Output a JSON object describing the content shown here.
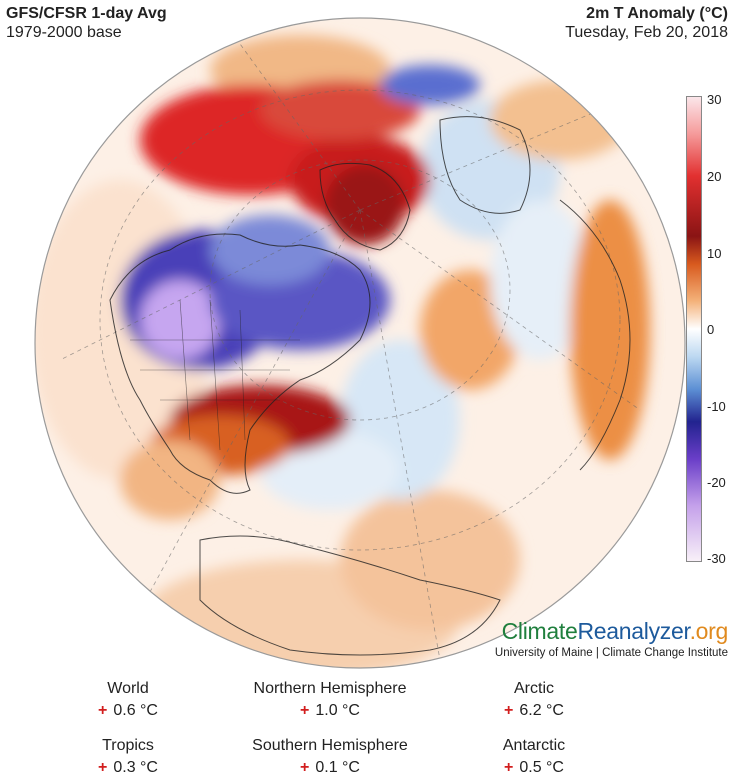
{
  "header": {
    "left_title": "GFS/CFSR 1-day Avg",
    "left_subtitle": "1979-2000 base",
    "right_title": "2m T Anomaly (°C)",
    "right_subtitle": "Tuesday, Feb 20, 2018"
  },
  "colorbar": {
    "ticks": [
      "30",
      "20",
      "10",
      "0",
      "-10",
      "-20",
      "-30"
    ],
    "stops": [
      "#fbe6ea",
      "#f07c7c",
      "#dd1f1f",
      "#8a1010",
      "#e0782a",
      "#f7c89a",
      "#ffffff",
      "#cfe3f5",
      "#6aa0d8",
      "#2a2a9c",
      "#7a4ad0",
      "#c9a7ec",
      "#f6eef8"
    ]
  },
  "brand": {
    "part1": "Climate",
    "part2": "Reanalyzer",
    "part3": ".org",
    "subtitle": "University of Maine | Climate Change Institute"
  },
  "stats": [
    {
      "label": "World",
      "sign": "+",
      "value": "0.6 °C"
    },
    {
      "label": "Northern Hemisphere",
      "sign": "+",
      "value": "1.0 °C"
    },
    {
      "label": "Arctic",
      "sign": "+",
      "value": "6.2 °C"
    },
    {
      "label": "Tropics",
      "sign": "+",
      "value": "0.3 °C"
    },
    {
      "label": "Southern Hemisphere",
      "sign": "+",
      "value": "0.1 °C"
    },
    {
      "label": "Antarctic",
      "sign": "+",
      "value": "0.5 °C"
    }
  ]
}
